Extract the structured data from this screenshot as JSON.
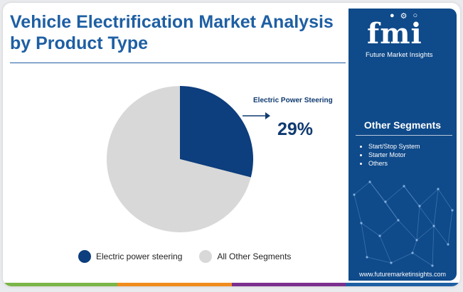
{
  "title": "Vehicle Electrification Market Analysis by Product Type",
  "chart_data": {
    "type": "pie",
    "title": "",
    "slices": [
      {
        "label": "Electric power steering",
        "value": 29,
        "color": "#0d3e7d"
      },
      {
        "label": "All Other Segments",
        "value": 71,
        "color": "#d8d8d8"
      }
    ],
    "start_angle_deg": 0,
    "direction": "clockwise"
  },
  "callout": {
    "label": "Electric Power Steering",
    "value": "29%"
  },
  "legend": {
    "items": [
      {
        "label": "Electric power steering",
        "color": "#0d3e7d"
      },
      {
        "label": "All Other Segments",
        "color": "#d8d8d8"
      }
    ]
  },
  "panel": {
    "logo_text": "fmi",
    "brand_name": "Future Market Insights",
    "segments_title": "Other Segments",
    "segments": [
      "Start/Stop System",
      "Starter Motor",
      "Others"
    ],
    "website": "www.futuremarketinsights.com",
    "background_color": "#0f4a8a"
  },
  "bottom_bar_colors": [
    "#7ab648",
    "#f08b1e",
    "#7b2f8e",
    "#1e5fa3"
  ]
}
